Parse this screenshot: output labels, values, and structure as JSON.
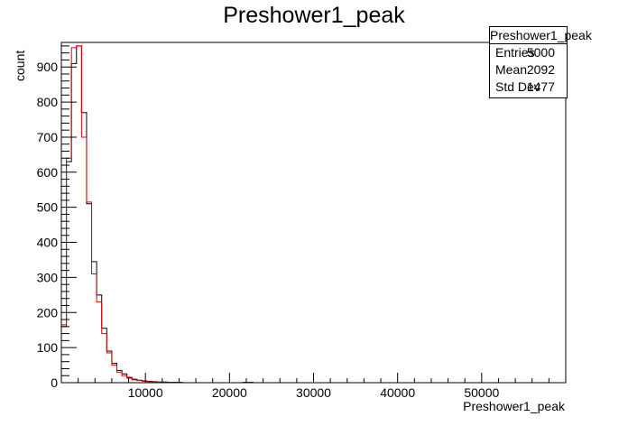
{
  "chart_data": {
    "type": "histogram",
    "title": "Preshower1_peak",
    "xlabel": "Preshower1_peak",
    "ylabel": "count",
    "xlim": [
      0,
      60000
    ],
    "ylim": [
      0,
      970
    ],
    "xticks": [
      10000,
      20000,
      30000,
      40000,
      50000
    ],
    "xtick_labels": [
      "10000",
      "20000",
      "30000",
      "40000",
      "50000"
    ],
    "yticks": [
      0,
      100,
      200,
      300,
      400,
      500,
      600,
      700,
      800,
      900
    ],
    "ytick_labels": [
      "0",
      "100",
      "200",
      "300",
      "400",
      "500",
      "600",
      "700",
      "800",
      "900"
    ],
    "bin_width": 600,
    "series": [
      {
        "color": "#000000",
        "values": [
          160,
          630,
          910,
          960,
          770,
          510,
          345,
          250,
          155,
          90,
          55,
          35,
          25,
          15,
          10,
          7,
          5,
          4,
          3,
          2,
          2,
          1,
          1,
          1,
          0,
          0,
          0,
          0,
          0,
          0,
          0,
          0,
          0,
          0,
          0,
          0,
          1,
          1,
          0,
          0
        ]
      },
      {
        "color": "#e00000",
        "values": [
          165,
          640,
          955,
          960,
          700,
          515,
          310,
          230,
          140,
          85,
          50,
          30,
          20,
          13,
          8,
          6,
          4,
          3,
          2,
          2,
          1,
          1,
          1,
          0,
          0,
          0,
          0,
          0,
          0,
          0,
          0,
          0,
          0,
          0,
          0,
          0,
          0,
          1,
          0,
          0
        ]
      }
    ],
    "grid": false,
    "legend": "none"
  },
  "stats": {
    "title": "Preshower1_peak",
    "rows": [
      {
        "label": "Entries",
        "value": "5000"
      },
      {
        "label": "Mean",
        "value": "2092"
      },
      {
        "label": "Std Dev",
        "value": "1477"
      }
    ]
  }
}
